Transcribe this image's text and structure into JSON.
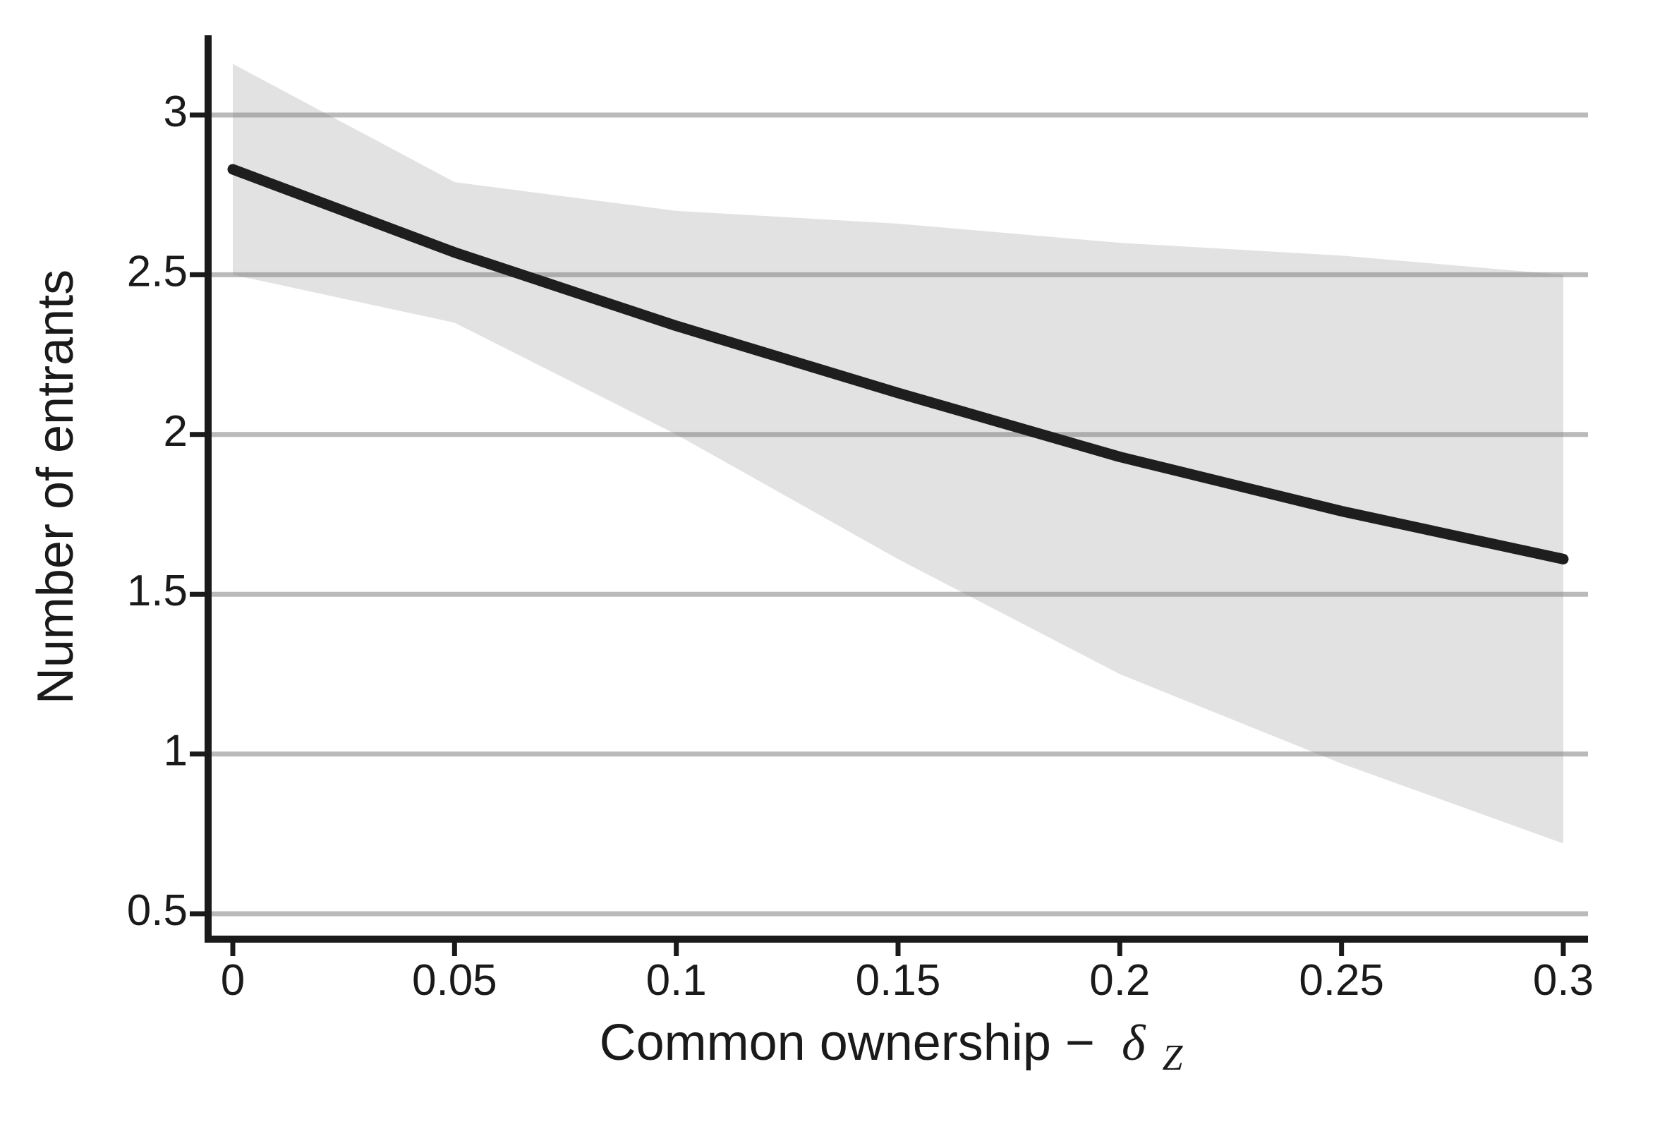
{
  "figure": {
    "background_color": "#ffffff"
  },
  "chart_data": {
    "type": "line",
    "title": "",
    "xlabel_text": "Common ownership −",
    "xlabel_symbol": "δ",
    "xlabel_subscript": "Z",
    "ylabel": "Number of entrants",
    "x": [
      0,
      0.05,
      0.1,
      0.15,
      0.2,
      0.25,
      0.3
    ],
    "series": [
      {
        "name": "mean",
        "values": [
          2.83,
          2.57,
          2.34,
          2.13,
          1.93,
          1.76,
          1.61
        ]
      },
      {
        "name": "ci_upper",
        "values": [
          3.16,
          2.79,
          2.7,
          2.66,
          2.6,
          2.56,
          2.5
        ]
      },
      {
        "name": "ci_lower",
        "values": [
          2.5,
          2.35,
          2.0,
          1.61,
          1.25,
          0.97,
          0.72
        ]
      }
    ],
    "x_ticks": [
      0,
      0.05,
      0.1,
      0.15,
      0.2,
      0.25,
      0.3
    ],
    "x_tick_labels": [
      "0",
      "0.05",
      "0.1",
      "0.15",
      "0.2",
      "0.25",
      "0.3"
    ],
    "y_ticks": [
      3,
      2.5,
      2,
      1.5,
      1,
      0.5
    ],
    "y_tick_labels": [
      "3",
      "2.5",
      "2",
      "1.5",
      "1",
      "0.5"
    ],
    "xlim": [
      0,
      0.3
    ],
    "ylim": [
      0.42,
      3.25
    ],
    "grid": true,
    "legend": false,
    "style": {
      "line_color": "#1e1e1e",
      "band_color": "#e2e2e2",
      "gridline_color": "rgba(130,130,130,0.55)",
      "axis_color": "#1a1a1a",
      "text_color": "#1a1a1a"
    }
  }
}
